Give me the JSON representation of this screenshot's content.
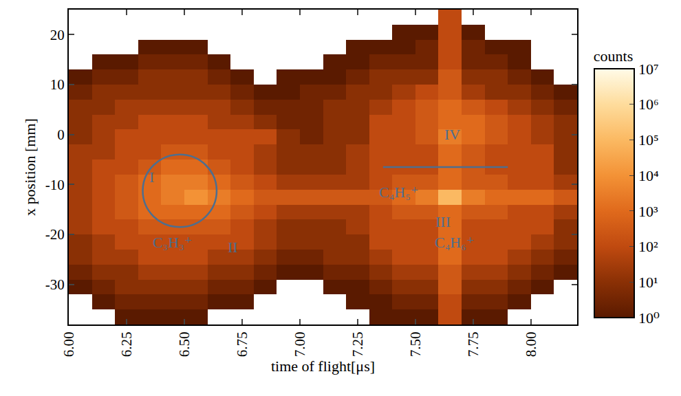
{
  "chart_data": {
    "type": "heatmap",
    "x_label": "time of flight[μs]",
    "y_label": "x position [mm]",
    "xlim": [
      6.0,
      8.2
    ],
    "ylim": [
      -38,
      25
    ],
    "xticks": [
      {
        "value": 6.0,
        "label": "6.00"
      },
      {
        "value": 6.25,
        "label": "6.25"
      },
      {
        "value": 6.5,
        "label": "6.50"
      },
      {
        "value": 6.75,
        "label": "6.75"
      },
      {
        "value": 7.0,
        "label": "7.00"
      },
      {
        "value": 7.25,
        "label": "7.25"
      },
      {
        "value": 7.5,
        "label": "7.50"
      },
      {
        "value": 7.75,
        "label": "7.75"
      },
      {
        "value": 8.0,
        "label": "8.00"
      }
    ],
    "yticks": [
      -30,
      -20,
      -10,
      0,
      10,
      20
    ],
    "grid": false,
    "x": [
      6.05,
      6.15,
      6.25,
      6.35,
      6.45,
      6.55,
      6.65,
      6.75,
      6.85,
      6.95,
      7.05,
      7.15,
      7.25,
      7.35,
      7.45,
      7.55,
      7.65,
      7.75,
      7.85,
      7.95,
      8.05,
      8.15
    ],
    "y": [
      23.5,
      20.5,
      17.5,
      14.5,
      11.5,
      8.5,
      5.5,
      2.5,
      -0.5,
      -3.5,
      -6.5,
      -9.5,
      -12.5,
      -15.5,
      -18.5,
      -21.5,
      -24.5,
      -27.5,
      -30.5,
      -33.5,
      -36.5
    ],
    "cells": [
      [
        null,
        null,
        null,
        null,
        null,
        null,
        null,
        null,
        null,
        null,
        null,
        null,
        null,
        null,
        null,
        null,
        100,
        null,
        null,
        null,
        null,
        null
      ],
      [
        null,
        null,
        null,
        null,
        null,
        null,
        null,
        null,
        null,
        null,
        null,
        null,
        null,
        null,
        1,
        1,
        100,
        1,
        null,
        null,
        null,
        null
      ],
      [
        null,
        null,
        null,
        1,
        1,
        1,
        null,
        null,
        null,
        null,
        null,
        null,
        1,
        1,
        1,
        3,
        100,
        3,
        1,
        1,
        null,
        null
      ],
      [
        null,
        1,
        1,
        3,
        3,
        3,
        1,
        null,
        null,
        null,
        null,
        1,
        1,
        3,
        3,
        3,
        100,
        3,
        3,
        1,
        null,
        null
      ],
      [
        1,
        3,
        3,
        10,
        10,
        10,
        3,
        1,
        null,
        1,
        1,
        1,
        3,
        10,
        10,
        10,
        300,
        10,
        10,
        3,
        1,
        null
      ],
      [
        3,
        10,
        10,
        10,
        10,
        10,
        10,
        3,
        1,
        1,
        3,
        3,
        10,
        10,
        30,
        100,
        300,
        30,
        10,
        10,
        3,
        1
      ],
      [
        10,
        10,
        30,
        30,
        30,
        30,
        30,
        10,
        3,
        3,
        3,
        10,
        10,
        30,
        100,
        300,
        1000,
        300,
        100,
        30,
        10,
        3
      ],
      [
        10,
        30,
        30,
        100,
        100,
        100,
        30,
        30,
        10,
        3,
        3,
        10,
        10,
        100,
        100,
        300,
        1000,
        1000,
        300,
        100,
        30,
        10
      ],
      [
        10,
        30,
        100,
        100,
        100,
        100,
        100,
        100,
        100,
        10,
        3,
        10,
        10,
        100,
        100,
        300,
        3000,
        1000,
        300,
        100,
        30,
        10
      ],
      [
        30,
        30,
        100,
        100,
        300,
        300,
        100,
        100,
        30,
        10,
        10,
        10,
        30,
        100,
        100,
        100,
        1000,
        300,
        100,
        100,
        100,
        10
      ],
      [
        30,
        100,
        100,
        300,
        1000,
        1000,
        300,
        100,
        30,
        10,
        10,
        10,
        30,
        100,
        100,
        100,
        1000,
        300,
        100,
        100,
        100,
        10
      ],
      [
        30,
        100,
        300,
        1000,
        3000,
        3000,
        1000,
        300,
        100,
        30,
        30,
        30,
        30,
        100,
        300,
        300,
        1000,
        300,
        300,
        100,
        100,
        30
      ],
      [
        30,
        100,
        300,
        1000,
        3000,
        10000,
        3000,
        1000,
        300,
        300,
        300,
        300,
        300,
        300,
        1000,
        3000,
        100000,
        3000,
        1000,
        1000,
        1000,
        300
      ],
      [
        30,
        100,
        300,
        1000,
        1000,
        1000,
        1000,
        300,
        100,
        30,
        30,
        30,
        30,
        100,
        300,
        300,
        1000,
        300,
        300,
        100,
        100,
        30
      ],
      [
        30,
        100,
        100,
        300,
        300,
        300,
        300,
        100,
        30,
        10,
        10,
        10,
        30,
        100,
        100,
        100,
        1000,
        100,
        100,
        100,
        100,
        10
      ],
      [
        10,
        30,
        100,
        100,
        100,
        100,
        100,
        100,
        30,
        10,
        10,
        10,
        10,
        100,
        100,
        100,
        1000,
        100,
        100,
        100,
        30,
        10
      ],
      [
        10,
        30,
        30,
        100,
        100,
        100,
        30,
        30,
        10,
        3,
        3,
        10,
        10,
        30,
        100,
        100,
        1000,
        100,
        100,
        30,
        10,
        3
      ],
      [
        3,
        10,
        10,
        30,
        30,
        30,
        10,
        10,
        3,
        1,
        1,
        3,
        3,
        10,
        30,
        30,
        300,
        30,
        30,
        10,
        3,
        1
      ],
      [
        1,
        3,
        10,
        10,
        10,
        10,
        3,
        3,
        1,
        null,
        null,
        1,
        1,
        3,
        10,
        10,
        300,
        10,
        10,
        3,
        1,
        null
      ],
      [
        null,
        1,
        3,
        3,
        3,
        3,
        1,
        1,
        null,
        null,
        null,
        null,
        1,
        1,
        3,
        3,
        100,
        3,
        3,
        1,
        null,
        null
      ],
      [
        null,
        null,
        1,
        1,
        1,
        1,
        null,
        null,
        null,
        null,
        null,
        null,
        null,
        1,
        1,
        1,
        100,
        1,
        1,
        null,
        null,
        null
      ]
    ],
    "colorbar": {
      "title": "counts",
      "log": true,
      "range": [
        1,
        10000000
      ],
      "ticks": [
        {
          "value": 1,
          "label": "10⁰"
        },
        {
          "value": 10,
          "label": "10¹"
        },
        {
          "value": 100,
          "label": "10²"
        },
        {
          "value": 1000,
          "label": "10³"
        },
        {
          "value": 10000,
          "label": "10⁴"
        },
        {
          "value": 100000,
          "label": "10⁵"
        },
        {
          "value": 1000000,
          "label": "10⁶"
        },
        {
          "value": 10000000,
          "label": "10⁷"
        }
      ]
    },
    "annotations": [
      {
        "text": "I",
        "x": 6.36,
        "y": -8.5
      },
      {
        "text": "II",
        "x": 6.71,
        "y": -22.5
      },
      {
        "text": "C₃H₃⁺",
        "x": 6.45,
        "y": -21.5
      },
      {
        "text": "IV",
        "x": 7.66,
        "y": 0
      },
      {
        "text": "C₄H₅⁺",
        "x": 7.43,
        "y": -11.5
      },
      {
        "text": "III",
        "x": 7.62,
        "y": -17.5
      },
      {
        "text": "C₄H₆⁺",
        "x": 7.67,
        "y": -21.5
      }
    ],
    "shapes": [
      {
        "type": "circle",
        "x0": 6.32,
        "x1": 6.64,
        "y0": -18.5,
        "y1": -4
      },
      {
        "type": "line",
        "x0": 7.36,
        "x1": 7.9,
        "y0": -6.5,
        "y1": -6.5
      }
    ]
  }
}
